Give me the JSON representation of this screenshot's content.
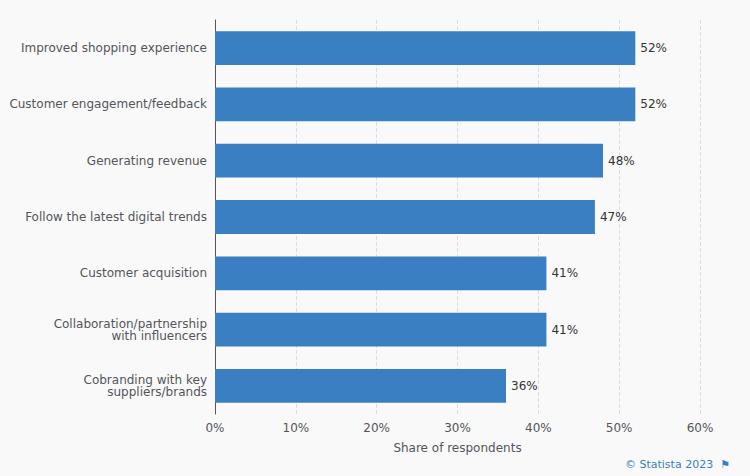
{
  "chart_data": {
    "type": "bar",
    "orientation": "horizontal",
    "categories": [
      "Cobranding with key\nsuppliers/brands",
      "Collaboration/partnership\nwith influencers",
      "Customer acquisition",
      "Follow the latest digital trends",
      "Generating revenue",
      "Customer engagement/feedback",
      "Improved shopping experience"
    ],
    "values": [
      36,
      41,
      41,
      47,
      48,
      52,
      52
    ],
    "value_labels": [
      "36%",
      "41%",
      "41%",
      "47%",
      "48%",
      "52%",
      "52%"
    ],
    "data_labels": true,
    "color": "#3a7fc1",
    "xlabel": "Share of respondents",
    "xlim": [
      0,
      60
    ],
    "xticks": [
      {
        "value": 0,
        "label": "0%"
      },
      {
        "value": 10,
        "label": "10%"
      },
      {
        "value": 20,
        "label": "20%"
      },
      {
        "value": 30,
        "label": "30%"
      },
      {
        "value": 40,
        "label": "40%"
      },
      {
        "value": 50,
        "label": "50%"
      },
      {
        "value": 60,
        "label": "60%"
      }
    ],
    "grid": true,
    "annotations": [
      "© Statista 2023  ⚑"
    ]
  }
}
